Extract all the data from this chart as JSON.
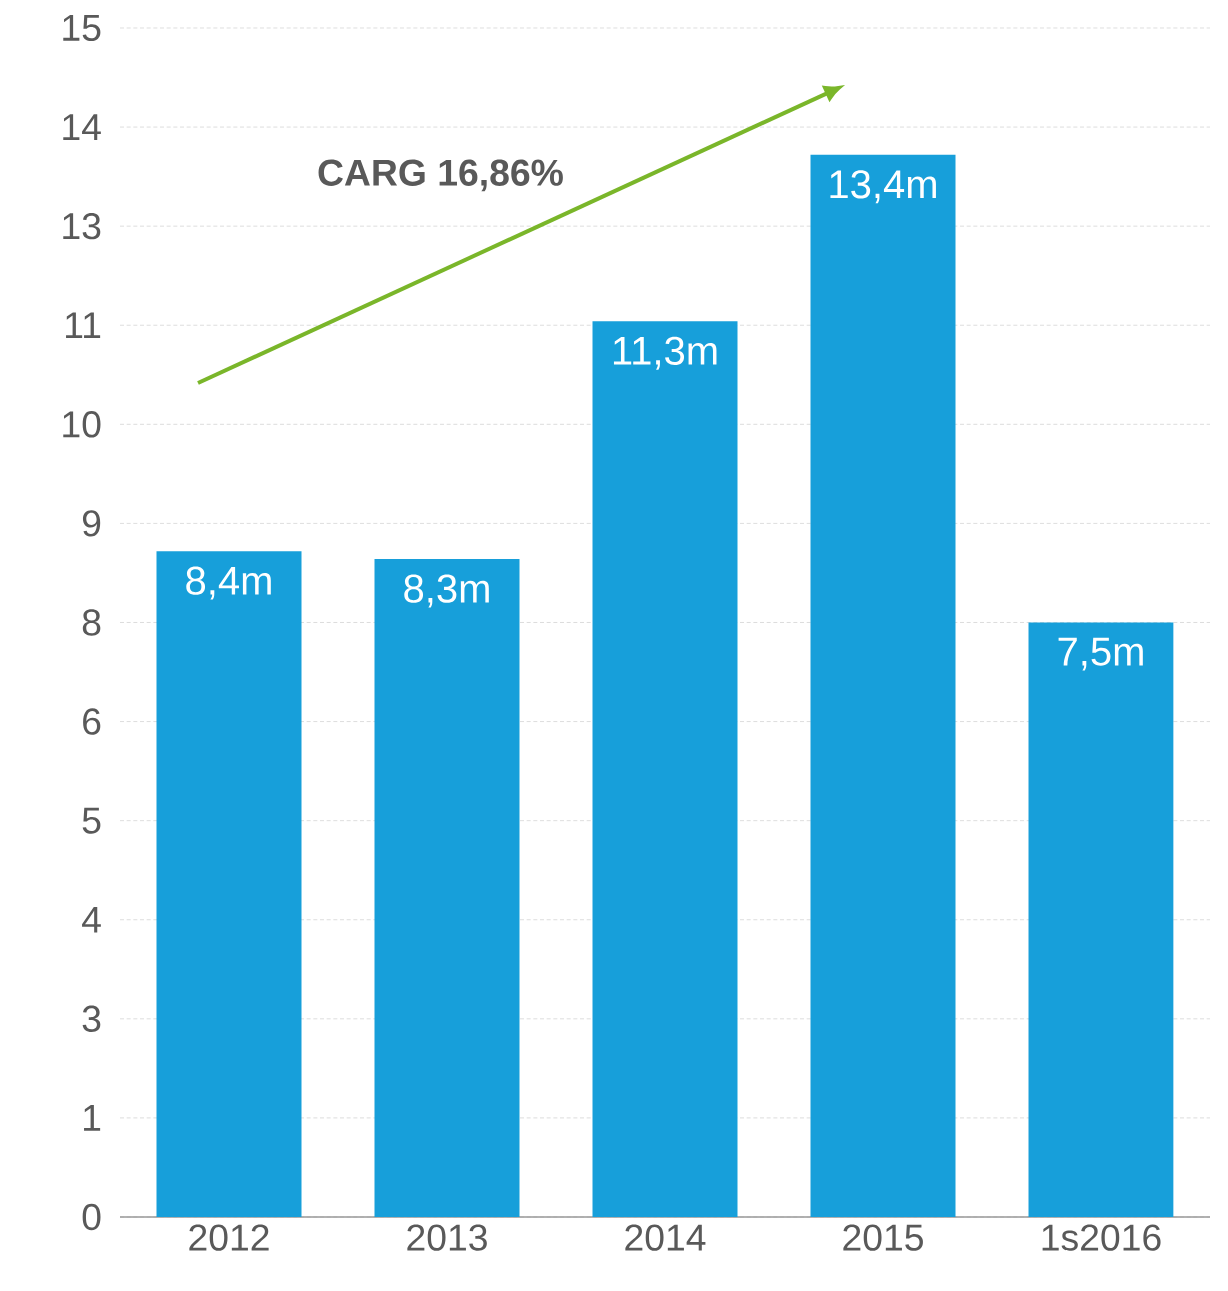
{
  "chart_data": {
    "type": "bar",
    "categories": [
      "2012",
      "2013",
      "2014",
      "2015",
      "1s2016"
    ],
    "values": [
      8.4,
      8.3,
      11.3,
      13.4,
      7.5
    ],
    "value_labels": [
      "8,4m",
      "8,3m",
      "11,3m",
      "13,4m",
      "7,5m"
    ],
    "color": "#179fda",
    "ylim": [
      0,
      15
    ],
    "yticks": [
      0,
      {
        "value": 1.25,
        "label": "1"
      },
      {
        "value": 2.5,
        "label": "3"
      },
      {
        "value": 3.75,
        "label": "4"
      },
      5,
      {
        "value": 6.25,
        "label": "6"
      },
      {
        "value": 7.5,
        "label": "8"
      },
      {
        "value": 8.75,
        "label": "9"
      },
      10,
      {
        "value": 11.25,
        "label": "11"
      },
      {
        "value": 12.5,
        "label": "13"
      },
      {
        "value": 13.75,
        "label": "14"
      },
      15
    ],
    "annotations": [
      "CARG 16,86%"
    ],
    "grid": "y"
  }
}
